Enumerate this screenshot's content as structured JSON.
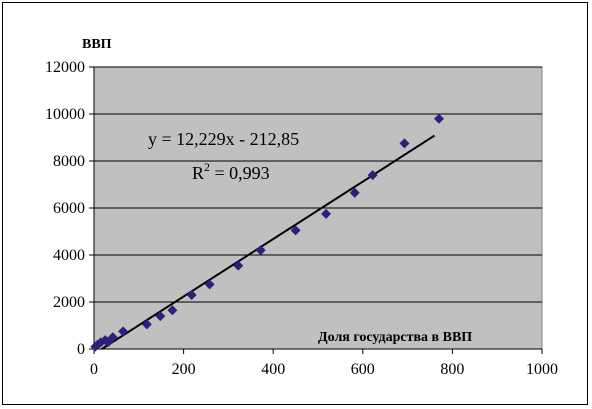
{
  "chart_data": {
    "type": "scatter",
    "title": "",
    "xlabel": "Доля государства в ВВП",
    "ylabel": "ВВП",
    "xlim": [
      0,
      1000
    ],
    "ylim": [
      0,
      12000
    ],
    "x_ticks": [
      0,
      200,
      400,
      600,
      800,
      1000
    ],
    "y_ticks": [
      0,
      2000,
      4000,
      6000,
      8000,
      10000,
      12000
    ],
    "grid": "horizontal",
    "plot_background": "#c0c0c0",
    "marker_color": "#2e1f7a",
    "trendline_color": "#000000",
    "series": [
      {
        "marker": "diamond",
        "x": [
          3,
          8,
          15,
          25,
          32,
          42,
          65,
          118,
          148,
          175,
          218,
          258,
          322,
          372,
          450,
          518,
          582,
          622,
          693,
          770
        ],
        "y": [
          100,
          180,
          280,
          380,
          300,
          500,
          750,
          1050,
          1400,
          1650,
          2300,
          2750,
          3550,
          4200,
          5050,
          5750,
          6650,
          7400,
          8750,
          9800
        ]
      }
    ],
    "trendline": {
      "slope": 12.229,
      "intercept": -212.85,
      "x_range": [
        0,
        760
      ]
    },
    "annotations": {
      "equation": "y = 12,229x - 212,85",
      "r2_label": "R",
      "r2_sup": "2",
      "r2_value": " = 0,993"
    }
  }
}
